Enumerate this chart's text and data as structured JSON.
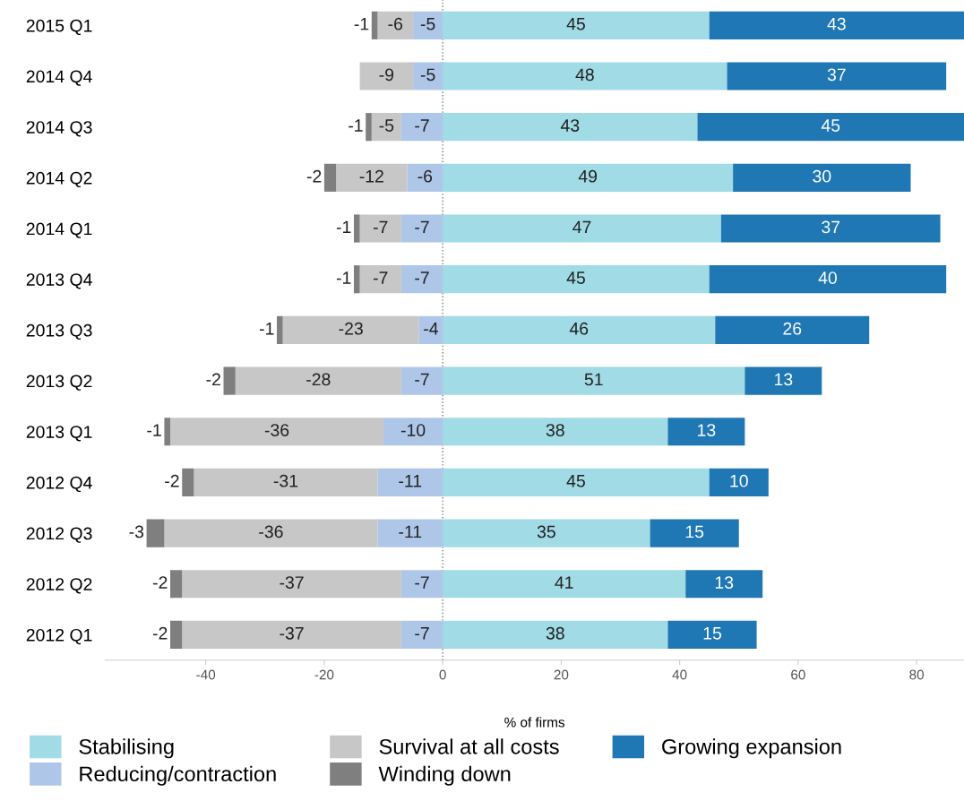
{
  "chart_data": {
    "type": "bar",
    "orientation": "horizontal",
    "stacked": true,
    "data_labels": true,
    "xlabel": "% of firms",
    "categories": [
      "2015 Q1",
      "2014 Q4",
      "2014 Q3",
      "2014 Q2",
      "2014 Q1",
      "2013 Q4",
      "2013 Q3",
      "2013 Q2",
      "2013 Q1",
      "2012 Q4",
      "2012 Q3",
      "2012 Q2",
      "2012 Q1"
    ],
    "series": [
      {
        "name": "Stabilising",
        "color": "#a0dbe6",
        "values": [
          45,
          48,
          43,
          49,
          47,
          45,
          46,
          51,
          38,
          45,
          35,
          41,
          38
        ]
      },
      {
        "name": "Reducing/contraction",
        "color": "#aec7e8",
        "values": [
          -5,
          -5,
          -7,
          -6,
          -7,
          -7,
          -4,
          -7,
          -10,
          -11,
          -11,
          -7,
          -7
        ]
      },
      {
        "name": "Survival at all costs",
        "color": "#c7c7c7",
        "values": [
          -6,
          -9,
          -5,
          -12,
          -7,
          -7,
          -23,
          -28,
          -36,
          -31,
          -36,
          -37,
          -37
        ]
      },
      {
        "name": "Winding down",
        "color": "#7f7f7f",
        "values": [
          -1,
          null,
          -1,
          -2,
          -1,
          -1,
          -1,
          -2,
          -1,
          -2,
          -3,
          -2,
          -2
        ]
      },
      {
        "name": "Growing expansion",
        "color": "#1f77b4",
        "values": [
          43,
          37,
          45,
          30,
          37,
          40,
          26,
          13,
          13,
          10,
          15,
          13,
          15
        ]
      }
    ],
    "xlim": [
      -57,
      88
    ],
    "xticks": [
      -40,
      -20,
      0,
      20,
      40,
      60,
      80
    ],
    "ref_lines": [
      {
        "axis": "x",
        "value": 0,
        "color": "#777777",
        "line_style": "dotted"
      }
    ],
    "grid": false,
    "legend": "bottom"
  }
}
